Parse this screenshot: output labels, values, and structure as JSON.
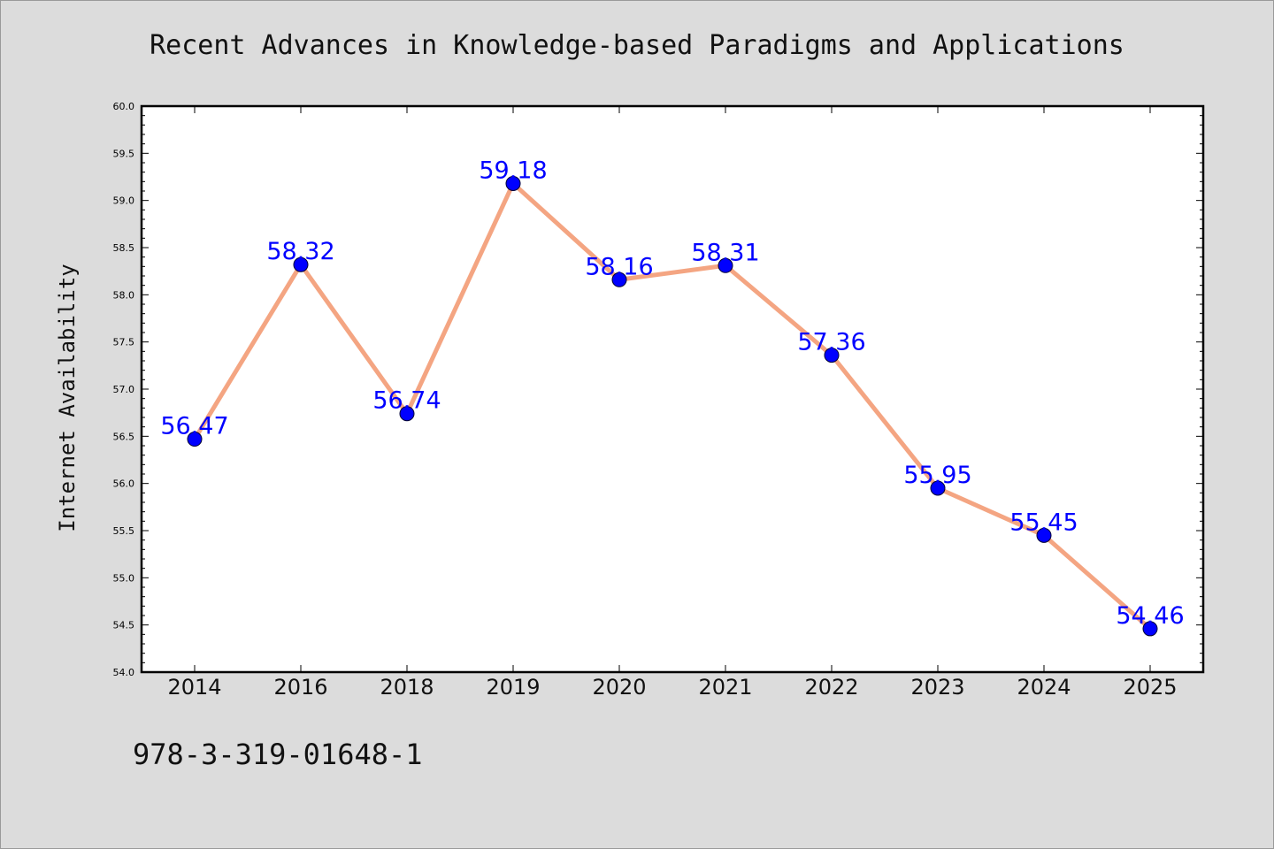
{
  "chart_data": {
    "type": "line",
    "title": "Recent Advances in Knowledge-based Paradigms and Applications",
    "ylabel": "Internet Availability",
    "xlabel": "",
    "categories": [
      "2014",
      "2016",
      "2018",
      "2019",
      "2020",
      "2021",
      "2022",
      "2023",
      "2024",
      "2025"
    ],
    "values": [
      56.47,
      58.32,
      56.74,
      59.18,
      58.16,
      58.31,
      57.36,
      55.95,
      55.45,
      54.46
    ],
    "data_labels": [
      "56.47",
      "58.32",
      "56.74",
      "59.18",
      "58.16",
      "58.31",
      "57.36",
      "55.95",
      "55.45",
      "54.46"
    ],
    "ylim": [
      54.0,
      60.0
    ],
    "yticks": [
      "54.0",
      "54.5",
      "55.0",
      "55.5",
      "56.0",
      "56.5",
      "57.0",
      "57.5",
      "58.0",
      "58.5",
      "59.0",
      "59.5",
      "60.0"
    ],
    "grid": false,
    "legend": "none",
    "line_color": "#f4a582",
    "marker_color": "#0000ff",
    "label_color": "#0000ff"
  },
  "footer": {
    "isbn": "978-3-319-01648-1"
  }
}
